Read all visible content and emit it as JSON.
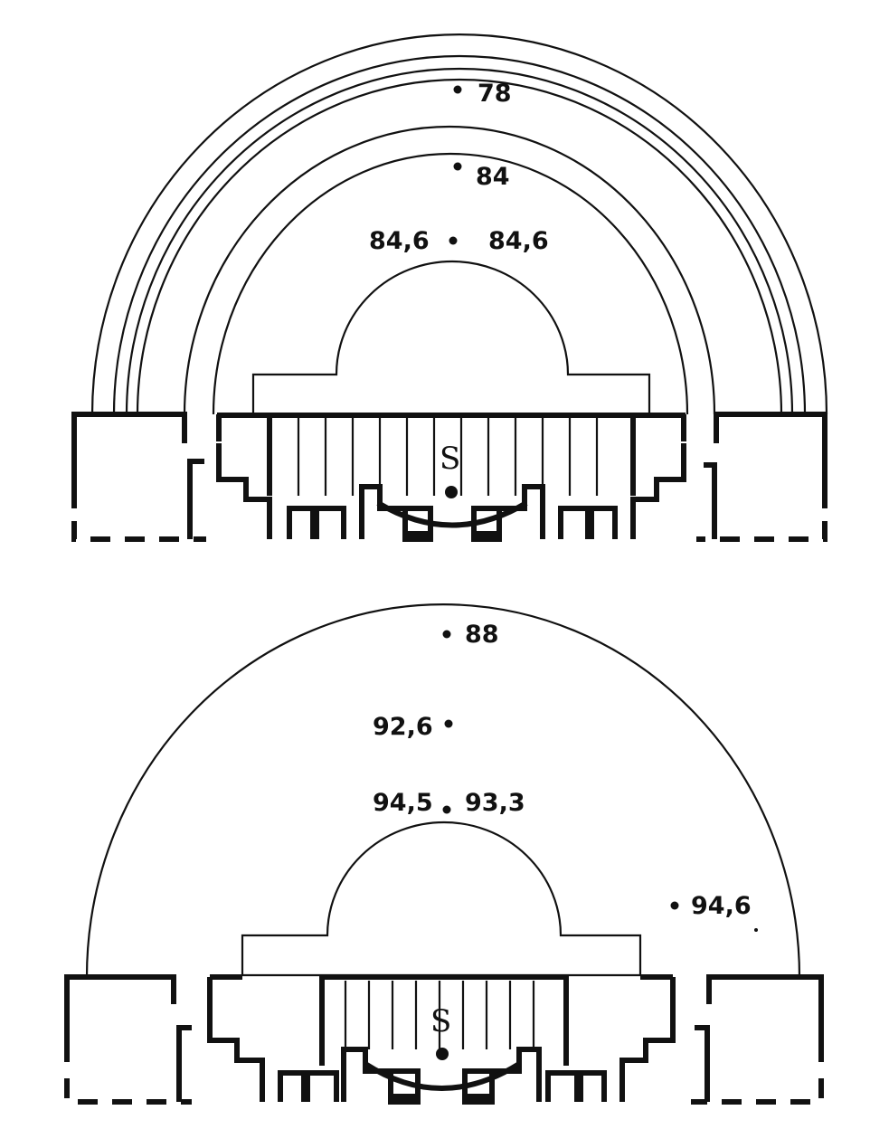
{
  "diagrams": [
    {
      "source_label": "S",
      "readings": [
        "78",
        "84",
        "84,6",
        "84,6"
      ]
    },
    {
      "source_label": "S",
      "readings": [
        "88",
        "92,6",
        "94,5",
        "93,3",
        "94,6"
      ]
    }
  ]
}
